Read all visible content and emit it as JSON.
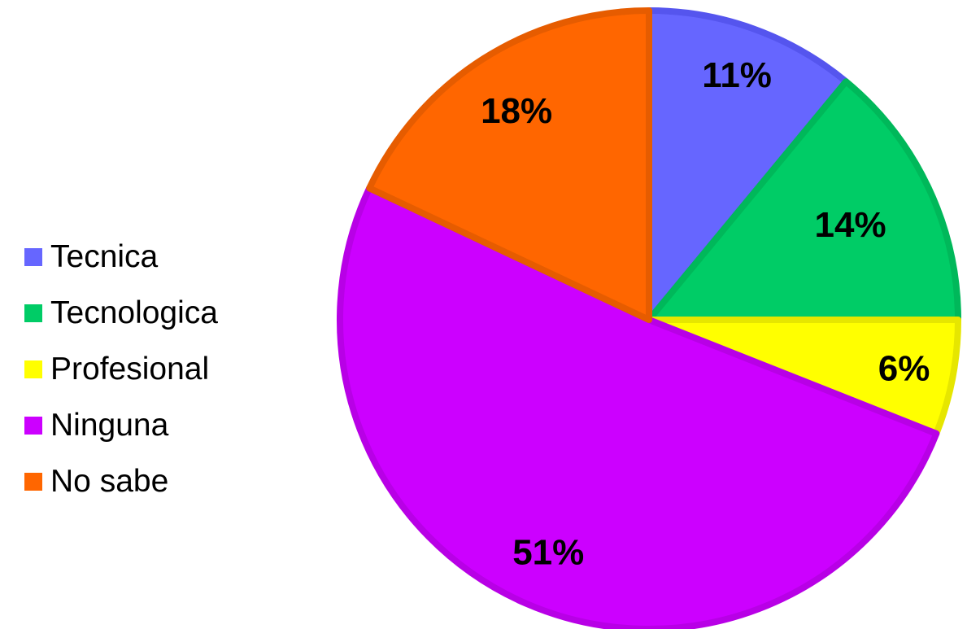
{
  "chart_data": {
    "type": "pie",
    "title": "",
    "legend_position": "left",
    "slices": [
      {
        "name": "Tecnica",
        "value": 11,
        "label": "11%",
        "color": "#6666ff",
        "edge": "#5555ee"
      },
      {
        "name": "Tecnologica",
        "value": 14,
        "label": "14%",
        "color": "#00cc66",
        "edge": "#00b85a"
      },
      {
        "name": "Profesional",
        "value": 6,
        "label": "6%",
        "color": "#ffff00",
        "edge": "#e6e600"
      },
      {
        "name": "Ninguna",
        "value": 51,
        "label": "51%",
        "color": "#cc00ff",
        "edge": "#b800e6"
      },
      {
        "name": "No sabe",
        "value": 18,
        "label": "18%",
        "color": "#ff6600",
        "edge": "#e65c00"
      }
    ]
  }
}
